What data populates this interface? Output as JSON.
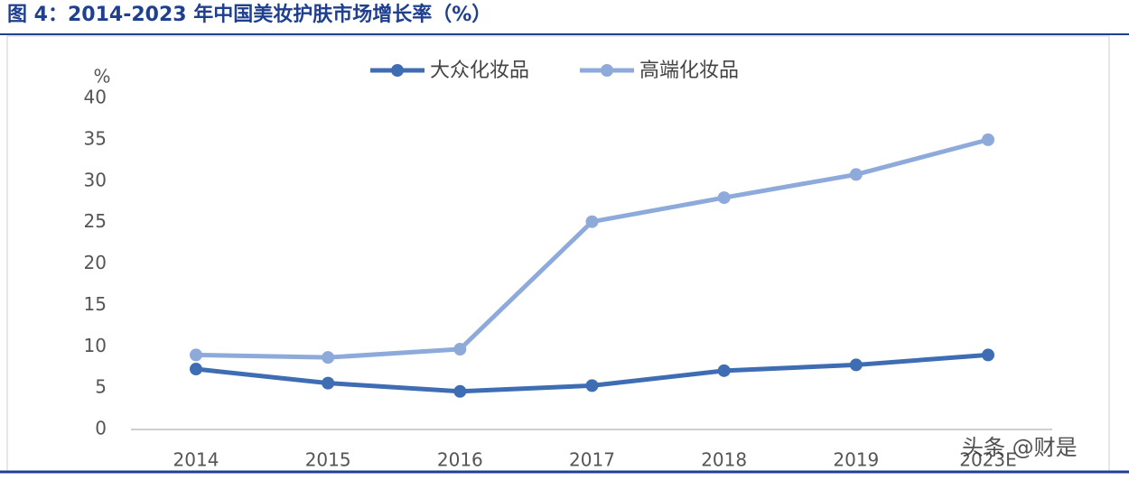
{
  "chart_data": {
    "type": "line",
    "title": "图 4：2014-2023 年中国美妆护肤市场增长率（%）",
    "y_label": "%",
    "categories": [
      "2014",
      "2015",
      "2016",
      "2017",
      "2018",
      "2019",
      "2023E"
    ],
    "series": [
      {
        "name": "大众化妆品",
        "color": "#3f6db3",
        "values": [
          7.3,
          5.6,
          4.6,
          5.3,
          7.1,
          7.8,
          9.0
        ]
      },
      {
        "name": "高端化妆品",
        "color": "#8eaadb",
        "values": [
          9.0,
          8.7,
          9.7,
          25.1,
          28.0,
          30.8,
          35.0
        ]
      }
    ],
    "ylim": [
      0,
      40
    ],
    "yticks": [
      0,
      5,
      10,
      15,
      20,
      25,
      30,
      35,
      40
    ],
    "watermark": "头条 @财是"
  }
}
